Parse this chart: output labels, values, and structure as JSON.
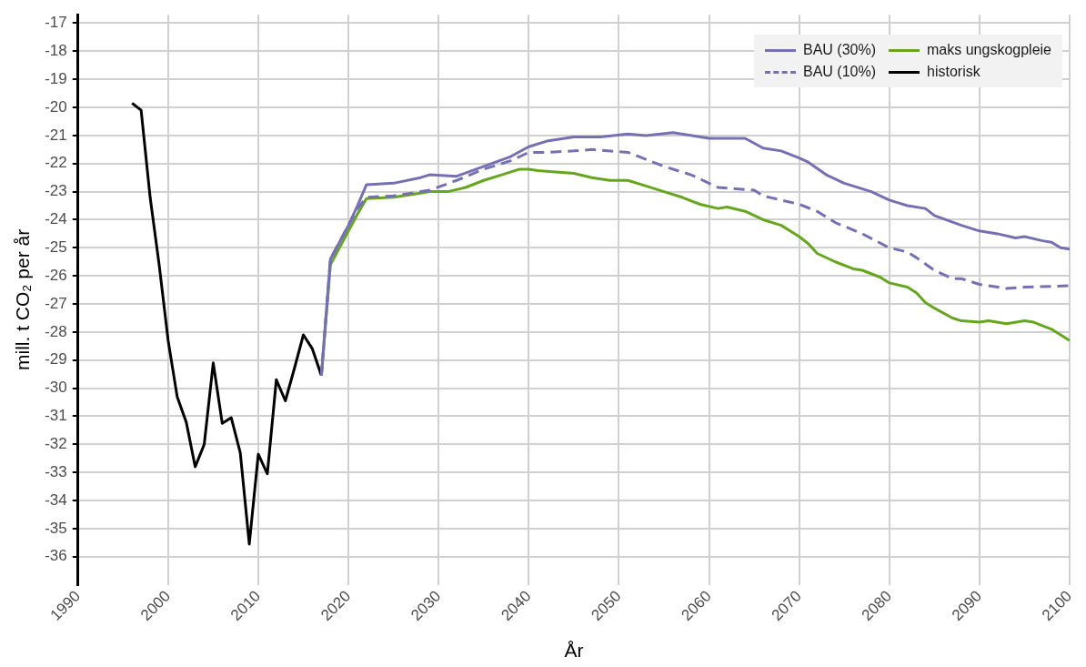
{
  "chart_data": {
    "type": "line",
    "xlabel": "År",
    "ylabel": "mill. t CO₂ per år",
    "xlim": [
      1990,
      2100
    ],
    "xticks": [
      1990,
      2000,
      2010,
      2020,
      2030,
      2040,
      2050,
      2060,
      2070,
      2080,
      2090,
      2100
    ],
    "ylim": [
      -37,
      -16.7
    ],
    "yticks": [
      -36,
      -35,
      -34,
      -33,
      -32,
      -31,
      -30,
      -29,
      -28,
      -27,
      -26,
      -25,
      -24,
      -23,
      -22,
      -21,
      -20,
      -19,
      -18,
      -17
    ],
    "grid": true,
    "legend": "top right",
    "marker": "none",
    "series": [
      {
        "name": "BAU (30%)",
        "color": "#7570b3",
        "line_style": "solid",
        "x": [
          2017,
          2018,
          2019,
          2020,
          2021,
          2022,
          2025,
          2028,
          2029,
          2032,
          2035,
          2038,
          2040,
          2042,
          2045,
          2048,
          2051,
          2053,
          2056,
          2060,
          2062,
          2064,
          2066,
          2068,
          2070,
          2071,
          2073,
          2075,
          2078,
          2080,
          2082,
          2084,
          2085,
          2088,
          2090,
          2092,
          2094,
          2095,
          2097,
          2098,
          2099,
          2100
        ],
        "values": [
          -29.55,
          -25.4,
          -24.8,
          -24.2,
          -23.5,
          -22.75,
          -22.7,
          -22.5,
          -22.4,
          -22.45,
          -22.1,
          -21.75,
          -21.4,
          -21.2,
          -21.05,
          -21.05,
          -20.95,
          -21.0,
          -20.9,
          -21.1,
          -21.1,
          -21.1,
          -21.45,
          -21.55,
          -21.8,
          -21.95,
          -22.4,
          -22.7,
          -23.0,
          -23.3,
          -23.5,
          -23.6,
          -23.85,
          -24.2,
          -24.4,
          -24.5,
          -24.65,
          -24.6,
          -24.75,
          -24.8,
          -25.0,
          -25.05
        ]
      },
      {
        "name": "BAU (10%)",
        "color": "#7570b3",
        "line_style": "dashed",
        "x": [
          2017,
          2018,
          2019,
          2020,
          2021,
          2022,
          2025,
          2029,
          2032,
          2035,
          2038,
          2040,
          2042,
          2045,
          2047,
          2051,
          2053,
          2055,
          2058,
          2061,
          2063,
          2065,
          2066,
          2068,
          2070,
          2072,
          2074,
          2077,
          2080,
          2082,
          2083,
          2085,
          2087,
          2088,
          2090,
          2093,
          2095,
          2100
        ],
        "values": [
          -29.55,
          -25.4,
          -24.8,
          -24.2,
          -23.6,
          -23.2,
          -23.15,
          -22.95,
          -22.6,
          -22.2,
          -21.9,
          -21.6,
          -21.6,
          -21.55,
          -21.5,
          -21.6,
          -21.85,
          -22.1,
          -22.4,
          -22.85,
          -22.9,
          -22.95,
          -23.15,
          -23.3,
          -23.45,
          -23.7,
          -24.1,
          -24.5,
          -25.0,
          -25.15,
          -25.35,
          -25.8,
          -26.1,
          -26.1,
          -26.3,
          -26.45,
          -26.4,
          -26.35
        ]
      },
      {
        "name": "maks ungskogpleie",
        "color": "#66a61e",
        "line_style": "solid",
        "x": [
          2017,
          2018,
          2019,
          2020,
          2021,
          2022,
          2025,
          2028,
          2029,
          2031,
          2033,
          2035,
          2037,
          2039,
          2040,
          2041,
          2043,
          2045,
          2047,
          2049,
          2051,
          2053,
          2055,
          2057,
          2059,
          2061,
          2062,
          2064,
          2066,
          2068,
          2070,
          2071,
          2072,
          2074,
          2076,
          2077,
          2079,
          2080,
          2082,
          2083,
          2084,
          2085,
          2087,
          2088,
          2090,
          2091,
          2093,
          2095,
          2096,
          2098,
          2100
        ],
        "values": [
          -29.55,
          -25.6,
          -25.0,
          -24.4,
          -23.8,
          -23.25,
          -23.2,
          -23.05,
          -23.0,
          -23.0,
          -22.85,
          -22.6,
          -22.4,
          -22.2,
          -22.2,
          -22.25,
          -22.3,
          -22.35,
          -22.5,
          -22.6,
          -22.6,
          -22.8,
          -23.0,
          -23.2,
          -23.45,
          -23.6,
          -23.55,
          -23.7,
          -24.0,
          -24.2,
          -24.6,
          -24.85,
          -25.2,
          -25.5,
          -25.75,
          -25.8,
          -26.05,
          -26.25,
          -26.4,
          -26.6,
          -26.95,
          -27.15,
          -27.5,
          -27.6,
          -27.65,
          -27.6,
          -27.7,
          -27.6,
          -27.65,
          -27.9,
          -28.3
        ]
      },
      {
        "name": "historisk",
        "color": "#000000",
        "line_style": "solid",
        "x": [
          1996,
          1997,
          1998,
          1999,
          2000,
          2001,
          2002,
          2003,
          2004,
          2005,
          2006,
          2007,
          2008,
          2009,
          2010,
          2011,
          2012,
          2013,
          2014,
          2015,
          2016,
          2017
        ],
        "values": [
          -19.85,
          -20.1,
          -23.2,
          -25.6,
          -28.3,
          -30.3,
          -31.2,
          -32.8,
          -32.0,
          -29.1,
          -31.25,
          -31.05,
          -32.3,
          -35.55,
          -32.35,
          -33.05,
          -29.7,
          -30.45,
          -29.3,
          -28.1,
          -28.6,
          -29.55
        ]
      }
    ]
  }
}
